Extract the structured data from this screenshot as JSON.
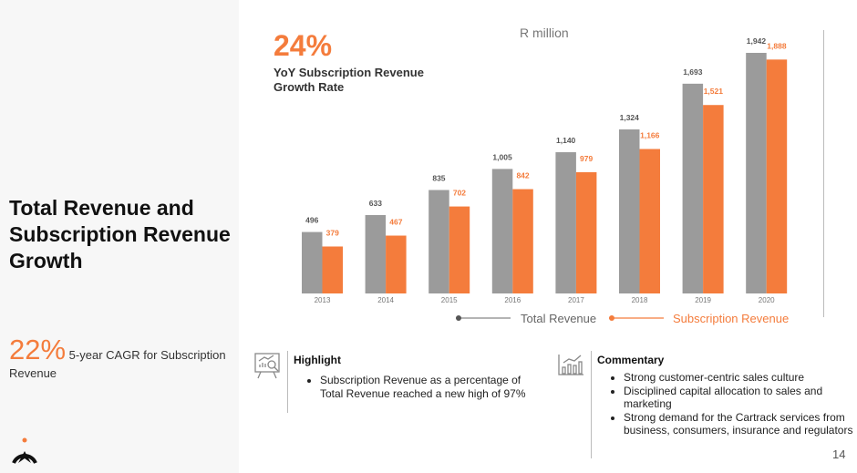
{
  "title": "Total Revenue and Subscription Revenue Growth",
  "cagr": {
    "value": "22%",
    "text": "5-year CAGR for Subscription Revenue"
  },
  "growth": {
    "value": "24%",
    "label": "YoY Subscription Revenue Growth Rate"
  },
  "highlight": {
    "title": "Highlight",
    "items": [
      "Subscription Revenue as a percentage of Total Revenue reached a new high of 97%"
    ]
  },
  "commentary": {
    "title": "Commentary",
    "items": [
      "Strong customer-centric sales culture",
      "Disciplined capital allocation to sales and marketing",
      "Strong demand for the Cartrack services from business, consumers, insurance and regulators"
    ]
  },
  "page_number": "14",
  "colors": {
    "total": "#9b9b9b",
    "subscription": "#f47c3c"
  },
  "chart_data": {
    "type": "bar",
    "title": "R million",
    "categories": [
      "2013",
      "2014",
      "2015",
      "2016",
      "2017",
      "2018",
      "2019",
      "2020"
    ],
    "series": [
      {
        "name": "Total Revenue",
        "values": [
          496,
          633,
          835,
          1005,
          1140,
          1324,
          1693,
          1942
        ],
        "labels": [
          "496",
          "633",
          "835",
          "1,005",
          "1,140",
          "1,324",
          "1,693",
          "1,942"
        ]
      },
      {
        "name": "Subscription Revenue",
        "values": [
          379,
          467,
          702,
          842,
          979,
          1166,
          1521,
          1888
        ],
        "labels": [
          "379",
          "467",
          "702",
          "842",
          "979",
          "1,166",
          "1,521",
          "1,888"
        ]
      }
    ],
    "ylim": [
      0,
      1942
    ],
    "legend": "bottom",
    "grid": false
  }
}
